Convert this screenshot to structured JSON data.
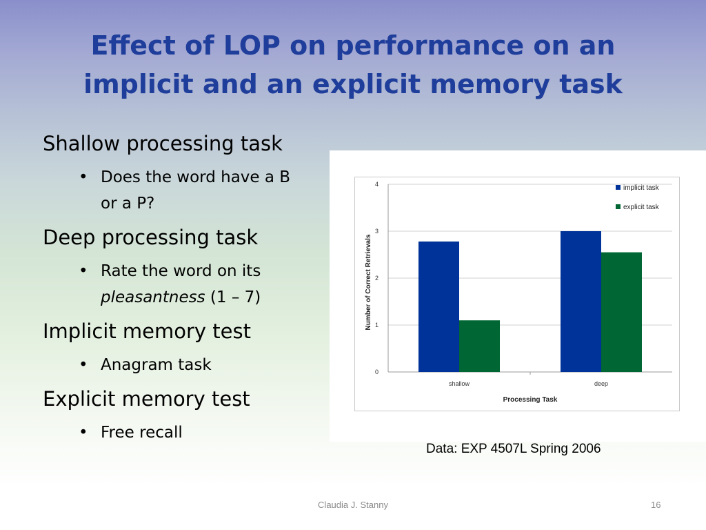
{
  "slide": {
    "title_line1": "Effect of LOP on performance on an",
    "title_line2": "implicit and an explicit memory task",
    "bullets": [
      {
        "heading": "Shallow processing task",
        "sub": [
          "Does the word have a B",
          "or a P?"
        ]
      },
      {
        "heading": "Deep processing task",
        "sub_line1": "Rate the word on its",
        "sub_line2_italic": "pleasantness",
        "sub_line2_rest": " (1 – 7)"
      },
      {
        "heading": "Implicit memory test",
        "sub": [
          "Anagram task"
        ]
      },
      {
        "heading": "Explicit memory test",
        "sub": [
          "Free recall"
        ]
      }
    ],
    "bullet_symbol": "•",
    "caption": "Data: EXP 4507L  Spring 2006",
    "author": "Claudia J. Stanny",
    "page_number": "16"
  },
  "chart_data": {
    "type": "bar",
    "categories": [
      "shallow",
      "deep"
    ],
    "series": [
      {
        "name": "implicit task",
        "values": [
          2.78,
          3.0
        ],
        "color": "#003399"
      },
      {
        "name": "explicit task",
        "values": [
          1.1,
          2.55
        ],
        "color": "#006633"
      }
    ],
    "xlabel": "Processing Task",
    "ylabel": "Number of Correct Retrievals",
    "ylim": [
      0,
      4
    ],
    "yticks": [
      "0",
      "1",
      "2",
      "3",
      "4"
    ],
    "grid": true,
    "legend_position": "top-right"
  }
}
